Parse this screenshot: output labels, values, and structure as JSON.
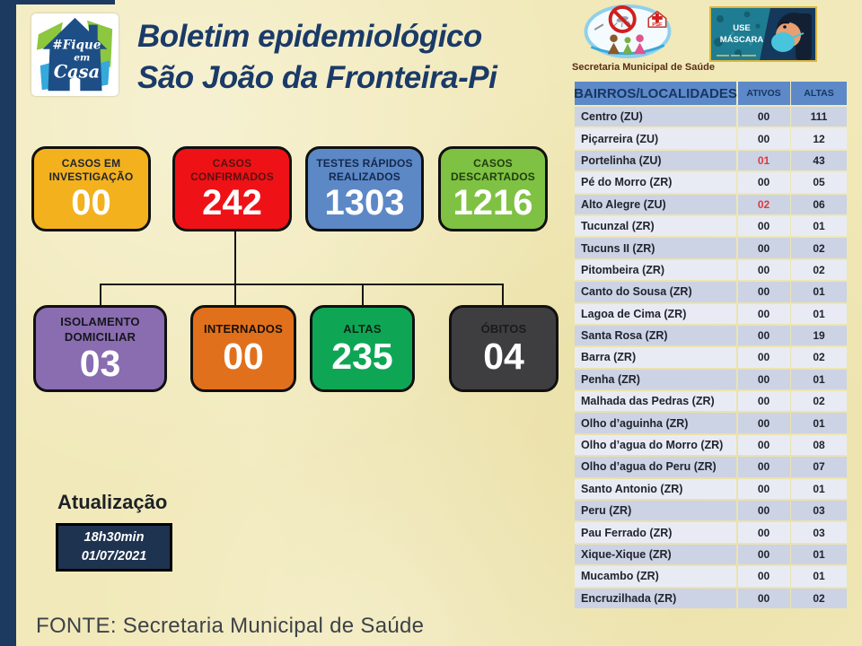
{
  "page": {
    "bg": "#f1e9b9",
    "accent_bar": "#1c3a60"
  },
  "header": {
    "home_logo": {
      "hashtag_line": "#Fique",
      "mid_line": "em",
      "bottom_line": "Casa"
    },
    "title": {
      "line1": "Boletim epidemiológico",
      "line2": "São João da Fronteira-Pi",
      "color": "#1a3a68"
    },
    "health_dept": {
      "label": "Secretaria Municipal de Saúde",
      "psf": "PSF"
    },
    "mask_banner": {
      "line1": "USE",
      "line2": "MÁSCARA"
    }
  },
  "summary_cards": {
    "row1": [
      {
        "label": "CASOS EM\nINVESTIGAÇÃO",
        "value": "00",
        "bg": "#F3B11D",
        "label_color": "#21262e"
      },
      {
        "label": "CASOS\nCONFIRMADOS",
        "value": "242",
        "bg": "#EE1216",
        "label_color": "#5a1010"
      },
      {
        "label": "TESTES RÁPIDOS\nREALIZADOS",
        "value": "1303",
        "bg": "#5C88C6",
        "label_color": "#14294e"
      },
      {
        "label": "CASOS\nDESCARTADOS",
        "value": "1216",
        "bg": "#7FC142",
        "label_color": "#20400f"
      }
    ],
    "row2": [
      {
        "label": "ISOLAMENTO\nDOMICILIAR",
        "value": "03",
        "bg": "#8A6CB1",
        "label_color": "#16161d"
      },
      {
        "label": "INTERNADOS",
        "value": "00",
        "bg": "#E1701C",
        "label_color": "#191008"
      },
      {
        "label": "ALTAS",
        "value": "235",
        "bg": "#0EA655",
        "label_color": "#0c2413"
      },
      {
        "label": "ÓBITOS",
        "value": "04",
        "bg": "#3E3E40",
        "label_color": "#1a1a1a"
      }
    ],
    "value_color": "#ffffff"
  },
  "update": {
    "title": "Atualização",
    "time": "18h30min",
    "date": "01/07/2021",
    "box_bg": "#1E3350"
  },
  "footer": {
    "source": "FONTE: Secretaria Municipal de Saúde"
  },
  "bairros_table": {
    "headers": {
      "col1": "BAIRROS/LOCALIDADES",
      "col2": "ATIVOS",
      "col3": "ALTAS"
    },
    "header_bg": "#5D89C8",
    "header_text_color": "#173663",
    "row_odd_bg": "#CCD3E5",
    "row_even_bg": "#E9EBF4",
    "active_alert_color": "#DD3B3B",
    "rows": [
      {
        "name": "Centro (ZU)",
        "ativos": "00",
        "altas": "111",
        "ativos_alert": false
      },
      {
        "name": "Piçarreira (ZU)",
        "ativos": "00",
        "altas": "12",
        "ativos_alert": false
      },
      {
        "name": "Portelinha (ZU)",
        "ativos": "01",
        "altas": "43",
        "ativos_alert": true
      },
      {
        "name": "Pé do Morro (ZR)",
        "ativos": "00",
        "altas": "05",
        "ativos_alert": false
      },
      {
        "name": "Alto Alegre (ZU)",
        "ativos": "02",
        "altas": "06",
        "ativos_alert": true
      },
      {
        "name": "Tucunzal (ZR)",
        "ativos": "00",
        "altas": "01",
        "ativos_alert": false
      },
      {
        "name": "Tucuns II (ZR)",
        "ativos": "00",
        "altas": "02",
        "ativos_alert": false
      },
      {
        "name": "Pitombeira (ZR)",
        "ativos": "00",
        "altas": "02",
        "ativos_alert": false
      },
      {
        "name": "Canto do Sousa (ZR)",
        "ativos": "00",
        "altas": "01",
        "ativos_alert": false
      },
      {
        "name": "Lagoa de Cima (ZR)",
        "ativos": "00",
        "altas": "01",
        "ativos_alert": false
      },
      {
        "name": "Santa Rosa (ZR)",
        "ativos": "00",
        "altas": "19",
        "ativos_alert": false
      },
      {
        "name": "Barra (ZR)",
        "ativos": "00",
        "altas": "02",
        "ativos_alert": false
      },
      {
        "name": "Penha (ZR)",
        "ativos": "00",
        "altas": "01",
        "ativos_alert": false
      },
      {
        "name": "Malhada das Pedras (ZR)",
        "ativos": "00",
        "altas": "02",
        "ativos_alert": false
      },
      {
        "name": "Olho d’aguinha (ZR)",
        "ativos": "00",
        "altas": "01",
        "ativos_alert": false
      },
      {
        "name": "Olho d’agua do Morro (ZR)",
        "ativos": "00",
        "altas": "08",
        "ativos_alert": false
      },
      {
        "name": "Olho d’agua do Peru (ZR)",
        "ativos": "00",
        "altas": "07",
        "ativos_alert": false
      },
      {
        "name": "Santo Antonio (ZR)",
        "ativos": "00",
        "altas": "01",
        "ativos_alert": false
      },
      {
        "name": "Peru (ZR)",
        "ativos": "00",
        "altas": "03",
        "ativos_alert": false
      },
      {
        "name": "Pau Ferrado (ZR)",
        "ativos": "00",
        "altas": "03",
        "ativos_alert": false
      },
      {
        "name": "Xique-Xique (ZR)",
        "ativos": "00",
        "altas": "01",
        "ativos_alert": false
      },
      {
        "name": "Mucambo (ZR)",
        "ativos": "00",
        "altas": "01",
        "ativos_alert": false
      },
      {
        "name": "Encruzilhada (ZR)",
        "ativos": "00",
        "altas": "02",
        "ativos_alert": false
      }
    ]
  }
}
